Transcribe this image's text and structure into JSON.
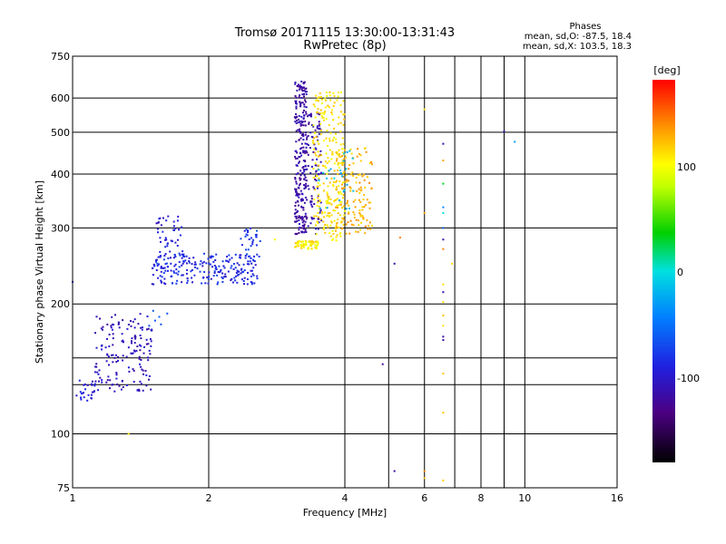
{
  "chart_data": {
    "type": "scatter",
    "title": "Tromsø 20171115 13:30:00-13:31:43",
    "subtitle": "RwPretec (8p)",
    "xlabel": "Frequency [MHz]",
    "ylabel": "Stationary phase Virtual Height [km]",
    "x_scale": "log",
    "y_scale": "log",
    "xlim": [
      1,
      16
    ],
    "ylim": [
      75,
      750
    ],
    "x_ticks": [
      "1",
      "2",
      "4",
      "6",
      "8",
      "10",
      "16"
    ],
    "y_ticks": [
      "75",
      "100",
      "200",
      "300",
      "400",
      "500",
      "600",
      "750"
    ],
    "grid": true,
    "phase_annotation": {
      "heading": "Phases",
      "line_o": "mean, sd,O: -87.5, 18.4",
      "line_x": "mean, sd,X: 103.5, 18.3"
    },
    "colorbar": {
      "label": "[deg]",
      "range": [
        -180,
        180
      ],
      "ticks": [
        "100",
        "0",
        "-100"
      ],
      "colormap": "rainbow (black-purple-blue-cyan-green-yellow-orange-red)"
    },
    "clusters": [
      {
        "freq_range": [
          1.02,
          1.12
        ],
        "height_range": [
          118,
          135
        ],
        "phase": -95,
        "count": 25
      },
      {
        "freq_range": [
          1.12,
          1.5
        ],
        "height_range": [
          125,
          190
        ],
        "phase": -108,
        "count": 160
      },
      {
        "freq_range": [
          1.45,
          1.62
        ],
        "height_range": [
          175,
          195
        ],
        "phase": -60,
        "count": 6
      },
      {
        "freq_range": [
          1.5,
          2.6
        ],
        "height_range": [
          222,
          262
        ],
        "phase": -88,
        "count": 230
      },
      {
        "freq_range": [
          1.52,
          1.75
        ],
        "height_range": [
          255,
          320
        ],
        "phase": -95,
        "count": 45
      },
      {
        "freq_range": [
          2.35,
          2.6
        ],
        "height_range": [
          255,
          300
        ],
        "phase": -80,
        "count": 30
      },
      {
        "freq_range": [
          3.1,
          3.3
        ],
        "height_range": [
          290,
          660
        ],
        "phase": -118,
        "count": 260
      },
      {
        "freq_range": [
          3.3,
          3.55
        ],
        "height_range": [
          290,
          560
        ],
        "phase": -115,
        "count": 90
      },
      {
        "freq_range": [
          3.1,
          3.5
        ],
        "height_range": [
          268,
          280
        ],
        "phase": 105,
        "count": 60
      },
      {
        "freq_range": [
          3.4,
          4.0
        ],
        "height_range": [
          280,
          620
        ],
        "phase": 108,
        "count": 260
      },
      {
        "freq_range": [
          3.8,
          4.6
        ],
        "height_range": [
          290,
          460
        ],
        "phase": 125,
        "count": 140
      },
      {
        "freq_range": [
          3.5,
          4.2
        ],
        "height_range": [
          330,
          460
        ],
        "phase": -20,
        "count": 25
      }
    ],
    "points": [
      {
        "x": 6.6,
        "y": 470,
        "phase": -115
      },
      {
        "x": 6.6,
        "y": 430,
        "phase": 130
      },
      {
        "x": 6.6,
        "y": 380,
        "phase": 30
      },
      {
        "x": 6.6,
        "y": 335,
        "phase": -40
      },
      {
        "x": 6.6,
        "y": 325,
        "phase": 0
      },
      {
        "x": 6.6,
        "y": 300,
        "phase": -60
      },
      {
        "x": 6.6,
        "y": 282,
        "phase": -115
      },
      {
        "x": 6.6,
        "y": 268,
        "phase": 140
      },
      {
        "x": 6.6,
        "y": 222,
        "phase": 110
      },
      {
        "x": 6.6,
        "y": 213,
        "phase": -115
      },
      {
        "x": 6.6,
        "y": 202,
        "phase": 110
      },
      {
        "x": 6.6,
        "y": 188,
        "phase": 120
      },
      {
        "x": 6.6,
        "y": 178,
        "phase": 110
      },
      {
        "x": 6.6,
        "y": 168,
        "phase": -115
      },
      {
        "x": 6.6,
        "y": 165,
        "phase": -115
      },
      {
        "x": 6.6,
        "y": 138,
        "phase": 120
      },
      {
        "x": 6.6,
        "y": 112,
        "phase": 120
      },
      {
        "x": 6.6,
        "y": 78,
        "phase": 115
      },
      {
        "x": 6.0,
        "y": 565,
        "phase": 110
      },
      {
        "x": 6.0,
        "y": 325,
        "phase": 130
      },
      {
        "x": 6.0,
        "y": 82,
        "phase": 140
      },
      {
        "x": 6.0,
        "y": 79,
        "phase": 120
      },
      {
        "x": 5.3,
        "y": 285,
        "phase": 140
      },
      {
        "x": 5.15,
        "y": 248,
        "phase": -120
      },
      {
        "x": 5.15,
        "y": 82,
        "phase": -120
      },
      {
        "x": 4.85,
        "y": 145,
        "phase": -120
      },
      {
        "x": 6.9,
        "y": 248,
        "phase": 110
      },
      {
        "x": 9.0,
        "y": 502,
        "phase": -115
      },
      {
        "x": 9.5,
        "y": 475,
        "phase": -30
      },
      {
        "x": 1.0,
        "y": 225,
        "phase": -90
      },
      {
        "x": 1.33,
        "y": 100,
        "phase": 110
      },
      {
        "x": 2.8,
        "y": 282,
        "phase": 100
      }
    ]
  }
}
